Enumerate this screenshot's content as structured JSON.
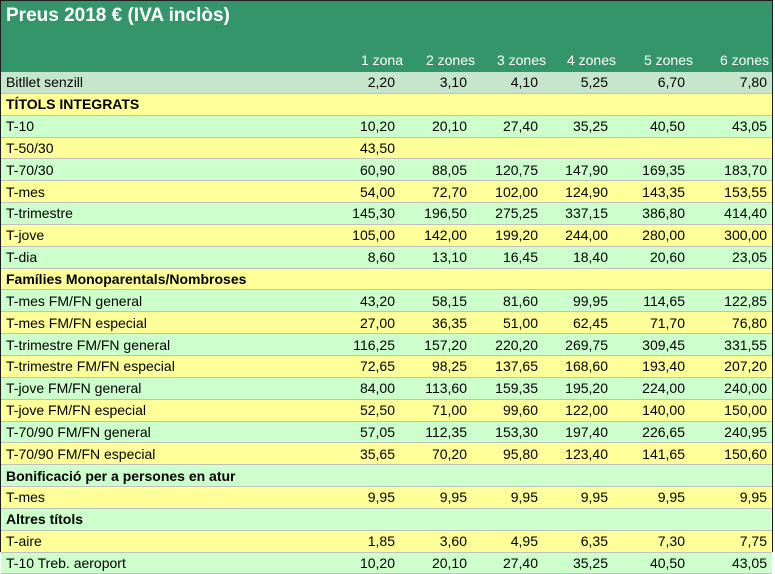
{
  "title": "Preus 2018 € (IVA inclòs)",
  "columns": [
    "1 zona",
    "2 zones",
    "3 zones",
    "4 zones",
    "5 zones",
    "6 zones"
  ],
  "colors": {
    "header_bg": "#35956a",
    "row_green": "#ccffcc",
    "row_yellow": "#ffff99",
    "row_first": "#c6e6cc"
  },
  "rows": [
    {
      "type": "data",
      "label": "Bitllet senzill",
      "values": [
        "2,20",
        "3,10",
        "4,10",
        "5,25",
        "6,70",
        "7,80"
      ],
      "bg": "row_first"
    },
    {
      "type": "section",
      "label": "TÍTOLS INTEGRATS",
      "bg": "row_yellow"
    },
    {
      "type": "data",
      "label": "T-10",
      "values": [
        "10,20",
        "20,10",
        "27,40",
        "35,25",
        "40,50",
        "43,05"
      ],
      "bg": "row_green"
    },
    {
      "type": "data",
      "label": "T-50/30",
      "values": [
        "43,50",
        "",
        "",
        "",
        "",
        ""
      ],
      "bg": "row_yellow"
    },
    {
      "type": "data",
      "label": "T-70/30",
      "values": [
        "60,90",
        "88,05",
        "120,75",
        "147,90",
        "169,35",
        "183,70"
      ],
      "bg": "row_green"
    },
    {
      "type": "data",
      "label": "T-mes",
      "values": [
        "54,00",
        "72,70",
        "102,00",
        "124,90",
        "143,35",
        "153,55"
      ],
      "bg": "row_yellow"
    },
    {
      "type": "data",
      "label": "T-trimestre",
      "values": [
        "145,30",
        "196,50",
        "275,25",
        "337,15",
        "386,80",
        "414,40"
      ],
      "bg": "row_green"
    },
    {
      "type": "data",
      "label": "T-jove",
      "values": [
        "105,00",
        "142,00",
        "199,20",
        "244,00",
        "280,00",
        "300,00"
      ],
      "bg": "row_yellow"
    },
    {
      "type": "data",
      "label": "T-dia",
      "values": [
        "8,60",
        "13,10",
        "16,45",
        "18,40",
        "20,60",
        "23,05"
      ],
      "bg": "row_green"
    },
    {
      "type": "section",
      "label": "Famílies Monoparentals/Nombroses",
      "bg": "row_yellow"
    },
    {
      "type": "data",
      "label": "T-mes FM/FN general",
      "values": [
        "43,20",
        "58,15",
        "81,60",
        "99,95",
        "114,65",
        "122,85"
      ],
      "bg": "row_green"
    },
    {
      "type": "data",
      "label": "T-mes FM/FN especial",
      "values": [
        "27,00",
        "36,35",
        "51,00",
        "62,45",
        "71,70",
        "76,80"
      ],
      "bg": "row_yellow"
    },
    {
      "type": "data",
      "label": "T-trimestre FM/FN general",
      "values": [
        "116,25",
        "157,20",
        "220,20",
        "269,75",
        "309,45",
        "331,55"
      ],
      "bg": "row_green"
    },
    {
      "type": "data",
      "label": "T-trimestre FM/FN especial",
      "values": [
        "72,65",
        "98,25",
        "137,65",
        "168,60",
        "193,40",
        "207,20"
      ],
      "bg": "row_yellow"
    },
    {
      "type": "data",
      "label": "T-jove FM/FN general",
      "values": [
        "84,00",
        "113,60",
        "159,35",
        "195,20",
        "224,00",
        "240,00"
      ],
      "bg": "row_green"
    },
    {
      "type": "data",
      "label": "T-jove FM/FN especial",
      "values": [
        "52,50",
        "71,00",
        "99,60",
        "122,00",
        "140,00",
        "150,00"
      ],
      "bg": "row_yellow"
    },
    {
      "type": "data",
      "label": "T-70/90 FM/FN general",
      "values": [
        "57,05",
        "112,35",
        "153,30",
        "197,40",
        "226,65",
        "240,95"
      ],
      "bg": "row_green"
    },
    {
      "type": "data",
      "label": "T-70/90 FM/FN especial",
      "values": [
        "35,65",
        "70,20",
        "95,80",
        "123,40",
        "141,65",
        "150,60"
      ],
      "bg": "row_yellow"
    },
    {
      "type": "section",
      "label": "Bonificació per a persones en atur",
      "bg": "row_green"
    },
    {
      "type": "data",
      "label": "T-mes",
      "values": [
        "9,95",
        "9,95",
        "9,95",
        "9,95",
        "9,95",
        "9,95"
      ],
      "bg": "row_yellow"
    },
    {
      "type": "section",
      "label": "Altres títols",
      "bg": "row_green"
    },
    {
      "type": "data",
      "label": "T-aire",
      "values": [
        "1,85",
        "3,60",
        "4,95",
        "6,35",
        "7,30",
        "7,75"
      ],
      "bg": "row_yellow"
    },
    {
      "type": "data",
      "label": "T-10 Treb. aeroport",
      "values": [
        "10,20",
        "20,10",
        "27,40",
        "35,25",
        "40,50",
        "43,05"
      ],
      "bg": "row_green"
    }
  ]
}
